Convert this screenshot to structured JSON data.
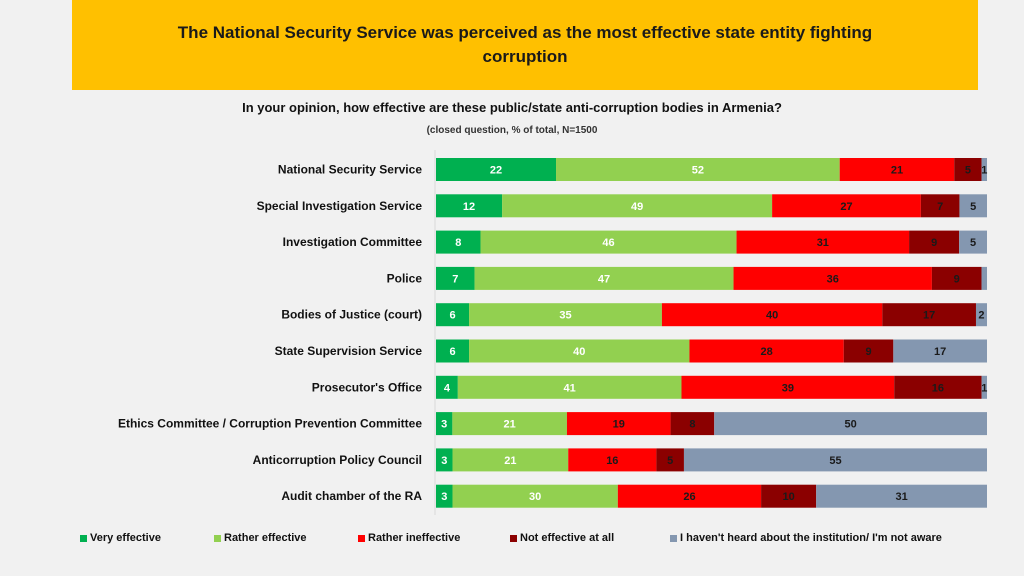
{
  "header": {
    "title": "The National Security Service was perceived as the most effective state entity fighting corruption"
  },
  "question": "In your opinion, how effective are these public/state anti-corruption bodies in Armenia?",
  "note": "(closed question, %  of total, N=1500",
  "chart_data": {
    "type": "bar",
    "orientation": "horizontal",
    "stacked": true,
    "normalized": true,
    "title": "In your opinion, how effective are these public/state anti-corruption bodies in Armenia?",
    "subtitle": "(closed question, %  of total, N=1500",
    "xlabel": "",
    "ylabel": "",
    "xlim": [
      0,
      100
    ],
    "grid": false,
    "legend_position": "bottom",
    "categories": [
      "National Security Service",
      "Special Investigation Service",
      "Investigation Committee",
      "Police",
      "Bodies of Justice (court)",
      "State Supervision Service",
      "Prosecutor's Office",
      "Ethics Committee / Corruption Prevention Committee",
      "Anticorruption Policy Council",
      "Audit chamber of the RA"
    ],
    "series": [
      {
        "name": "Very effective",
        "color": "#00b050",
        "label_color": "#ffffff",
        "values": [
          22,
          12,
          8,
          7,
          6,
          6,
          4,
          3,
          3,
          3
        ]
      },
      {
        "name": "Rather effective",
        "color": "#92d050",
        "label_color": "#ffffff",
        "values": [
          52,
          49,
          46,
          47,
          35,
          40,
          41,
          21,
          21,
          30
        ]
      },
      {
        "name": "Rather ineffective",
        "color": "#ff0000",
        "label_color": "#1a1a1a",
        "values": [
          21,
          27,
          31,
          36,
          40,
          28,
          39,
          19,
          16,
          26
        ]
      },
      {
        "name": "Not effective at all",
        "color": "#8b0000",
        "label_color": "#1a1a1a",
        "values": [
          5,
          7,
          9,
          9,
          17,
          9,
          16,
          8,
          5,
          10
        ]
      },
      {
        "name": "I haven't heard about the institution/ I'm not aware",
        "color": "#8497b0",
        "label_color": "#1a1a1a",
        "values": [
          1,
          5,
          5,
          1,
          2,
          17,
          1,
          50,
          55,
          31
        ]
      }
    ],
    "hidden_labels": [
      [
        3,
        4
      ]
    ]
  }
}
